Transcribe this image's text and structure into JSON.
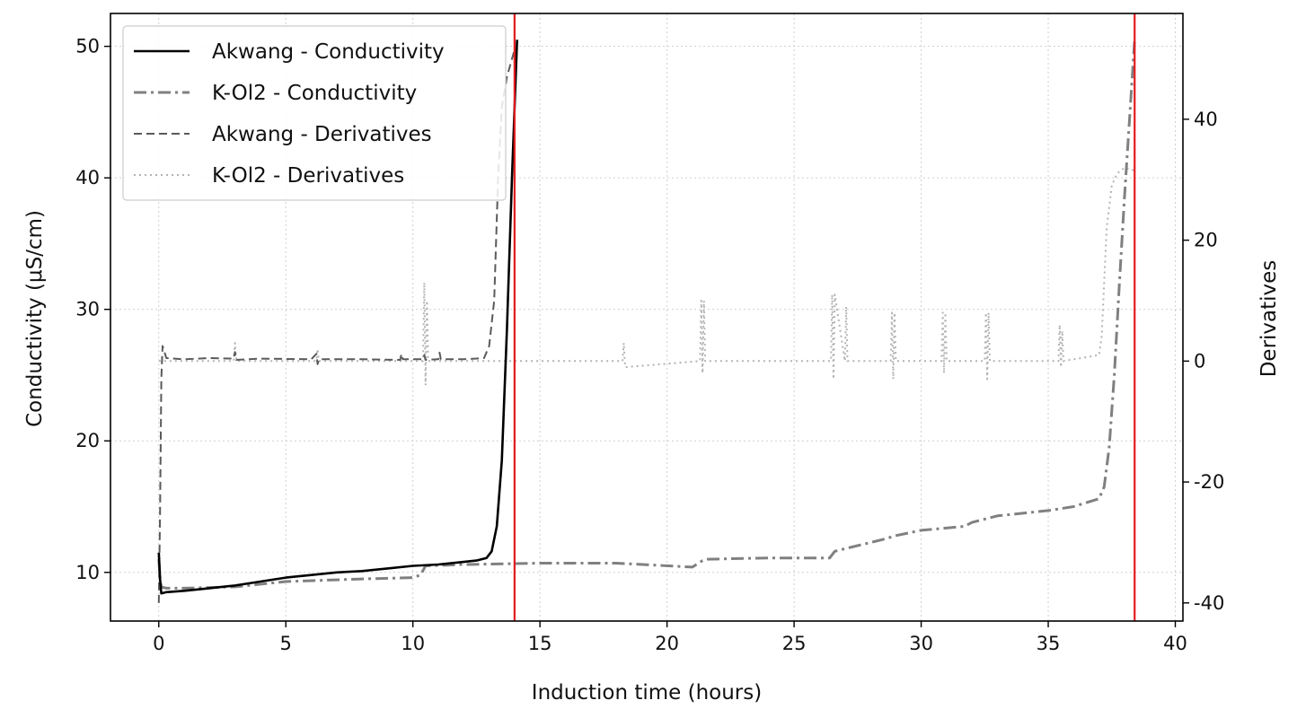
{
  "chart_data": {
    "type": "line",
    "xlabel": "Induction time (hours)",
    "ylabel": "Conductivity (μS/cm)",
    "y2label": "Derivatives",
    "xlim": [
      -1.9,
      40.3
    ],
    "ylim": [
      6.3,
      52.5
    ],
    "y2lim": [
      -43.0,
      57.5
    ],
    "xticks": [
      0,
      5,
      10,
      15,
      20,
      25,
      30,
      35,
      40
    ],
    "yticks": [
      10,
      20,
      30,
      40,
      50
    ],
    "y2ticks": [
      -40,
      -20,
      0,
      20,
      40
    ],
    "y2tick_labels": [
      "-40",
      "-20",
      "0",
      "20",
      "40"
    ],
    "grid": true,
    "legend_position": "top-left",
    "vlines": {
      "x": [
        14.0,
        38.4
      ],
      "color": "#e31a1c"
    },
    "series": [
      {
        "name": "Akwang - Conductivity",
        "axis": "left",
        "style": "solid",
        "color": "#000000",
        "x": [
          0.0,
          0.05,
          0.1,
          0.3,
          1,
          2,
          3,
          4,
          5,
          6,
          7,
          8,
          9,
          10,
          11,
          12,
          12.5,
          12.9,
          13.1,
          13.3,
          13.5,
          13.7,
          13.9,
          14.1
        ],
        "y": [
          11.5,
          9.5,
          8.4,
          8.5,
          8.6,
          8.8,
          9.0,
          9.3,
          9.6,
          9.8,
          10.0,
          10.1,
          10.3,
          10.5,
          10.6,
          10.8,
          10.9,
          11.1,
          11.6,
          13.5,
          18.5,
          28.5,
          40.0,
          50.5
        ]
      },
      {
        "name": "K-Ol2 - Conductivity",
        "axis": "left",
        "style": "dashdot",
        "color": "#808080",
        "x": [
          0.0,
          0.05,
          0.1,
          0.3,
          1,
          3,
          5,
          8,
          10,
          10.3,
          10.5,
          12,
          15,
          18,
          21,
          21.4,
          21.6,
          24,
          26.4,
          26.6,
          27,
          28.5,
          29,
          30,
          31.7,
          32,
          33,
          35,
          36,
          37.0,
          37.2,
          37.4,
          37.6,
          37.8,
          38.0,
          38.2,
          38.4
        ],
        "y": [
          11.0,
          9.5,
          8.9,
          8.8,
          8.8,
          8.9,
          9.3,
          9.5,
          9.6,
          9.8,
          10.5,
          10.6,
          10.7,
          10.7,
          10.4,
          10.9,
          11.0,
          11.1,
          11.1,
          11.6,
          11.8,
          12.5,
          12.8,
          13.2,
          13.5,
          13.8,
          14.3,
          14.7,
          15.0,
          15.6,
          16.5,
          19.5,
          25.0,
          32.0,
          38.5,
          44.5,
          50.5
        ]
      },
      {
        "name": "Akwang - Derivatives",
        "axis": "right",
        "style": "dashed",
        "color": "#5a5a5a",
        "x": [
          0.0,
          0.05,
          0.1,
          0.15,
          0.3,
          1,
          2,
          2.95,
          3.0,
          3.05,
          4,
          6,
          6.2,
          6.25,
          6.3,
          8,
          9.5,
          9.55,
          9.6,
          10.4,
          10.45,
          10.5,
          11,
          11.05,
          11.1,
          12,
          12.8,
          13.0,
          13.2,
          13.35,
          13.5,
          13.7,
          13.9,
          14.0
        ],
        "y": [
          -40.0,
          -25.0,
          -3.0,
          2.5,
          0.5,
          0.3,
          0.5,
          0.4,
          1.5,
          0.2,
          0.4,
          0.3,
          1.2,
          -0.5,
          0.3,
          0.3,
          0.2,
          1.2,
          0.3,
          0.3,
          1.0,
          0.2,
          0.3,
          1.4,
          0.3,
          0.3,
          0.5,
          2.5,
          10.0,
          30.0,
          42.0,
          47.0,
          50.0,
          51.5
        ]
      },
      {
        "name": "K-Ol2 - Derivatives",
        "axis": "right",
        "style": "dotted",
        "color": "#b3b3b3",
        "x": [
          0.0,
          2,
          2.95,
          3.0,
          3.05,
          6.2,
          6.25,
          6.3,
          10.4,
          10.45,
          10.5,
          10.55,
          10.6,
          14,
          18.25,
          18.3,
          18.35,
          21.3,
          21.35,
          21.4,
          21.45,
          21.5,
          26.45,
          26.5,
          26.55,
          26.6,
          27,
          27.05,
          27.1,
          28.8,
          28.85,
          28.9,
          28.95,
          29,
          30.8,
          30.85,
          30.9,
          30.95,
          31,
          32.5,
          32.55,
          32.6,
          32.65,
          32.7,
          35.4,
          35.45,
          35.5,
          35.55,
          35.6,
          37.0,
          37.1,
          37.3,
          37.5,
          37.7,
          38.0,
          38.4
        ],
        "y": [
          0.0,
          0.0,
          0.0,
          3.0,
          0.0,
          0.0,
          2.0,
          0.0,
          0.0,
          13.0,
          -4.0,
          10.0,
          0.0,
          0.0,
          0.0,
          3.0,
          -1.0,
          0.0,
          10.0,
          -2.0,
          10.0,
          0.0,
          0.0,
          11.0,
          -3.0,
          11.0,
          0.0,
          9.0,
          0.0,
          0.0,
          8.0,
          -3.0,
          8.0,
          0.0,
          0.0,
          8.0,
          -2.0,
          8.0,
          0.0,
          0.0,
          8.0,
          -3.0,
          8.0,
          0.0,
          0.0,
          6.0,
          -1.0,
          5.0,
          0.0,
          1.0,
          4.0,
          22.0,
          29.0,
          31.0,
          32.0,
          31.5
        ]
      }
    ]
  }
}
